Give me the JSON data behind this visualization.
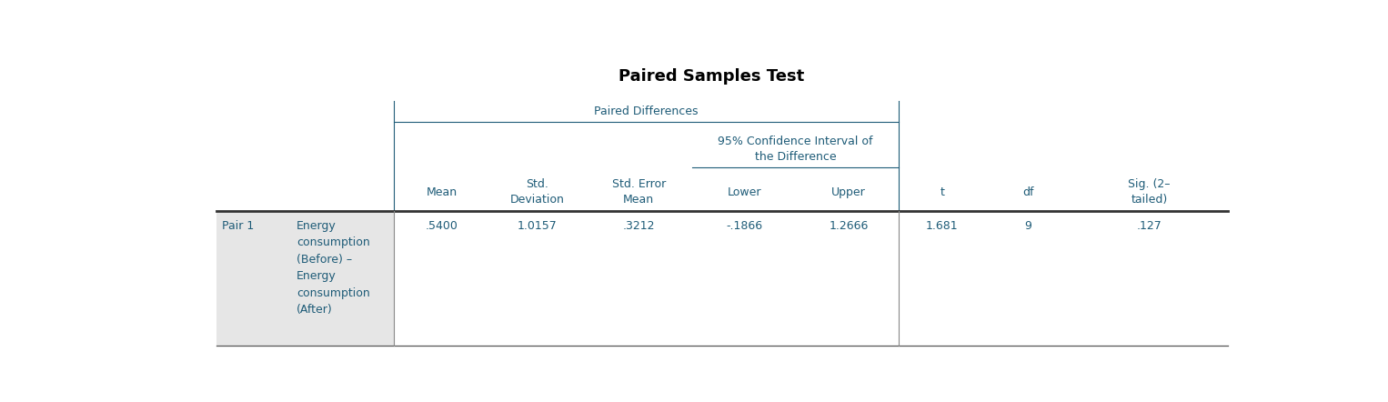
{
  "title": "Paired Samples Test",
  "title_fontsize": 13,
  "title_bold": true,
  "title_color": "#000000",
  "group_header": "Paired Differences",
  "group_header_color": "#1F5C78",
  "group_header_fontsize": 9,
  "ci_header": "95% Confidence Interval of\nthe Difference",
  "ci_header_color": "#1F5C78",
  "col_header_color": "#1F5C78",
  "col_header_fontsize": 9,
  "row_label_left": "Pair 1",
  "row_label_desc": "Energy\nconsumption\n(Before) –\nEnergy\nconsumption\n(After)",
  "row_label_color": "#1F5C78",
  "row_label_fontsize": 9,
  "data_values": [
    ".5400",
    "1.0157",
    ".3212",
    "-.1866",
    "1.2666",
    "1.681",
    "9",
    ".127"
  ],
  "data_color": "#1F5C78",
  "data_fontsize": 9,
  "bg_color": "#ffffff",
  "row_bg_color": "#e6e6e6",
  "col_bounds": [
    0.0,
    0.075,
    0.175,
    0.27,
    0.365,
    0.47,
    0.575,
    0.675,
    0.76,
    0.845,
    1.0
  ],
  "figsize": [
    15.26,
    4.42
  ],
  "dpi": 100
}
